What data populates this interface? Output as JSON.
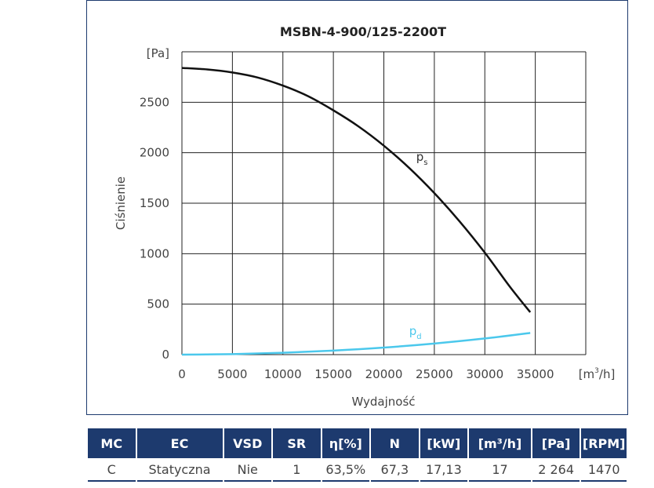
{
  "chart_data": {
    "type": "line",
    "title": "MSBN-4-900/125-2200T",
    "xlabel": "Wydajność",
    "ylabel": "Ciśnienie",
    "x_unit": "[m³/h]",
    "y_unit": "[Pa]",
    "xlim": [
      0,
      40000
    ],
    "ylim": [
      0,
      3000
    ],
    "x_ticks": [
      "0",
      "5000",
      "10000",
      "15000",
      "20000",
      "25000",
      "30000",
      "35000"
    ],
    "y_ticks": [
      "0",
      "500",
      "1000",
      "1500",
      "2000",
      "2500"
    ],
    "grid": true,
    "series": [
      {
        "name": "ps",
        "label_main": "p",
        "label_sub": "s",
        "color": "#111111",
        "x": [
          0,
          2500,
          5000,
          7500,
          10000,
          12500,
          15000,
          17500,
          20000,
          22500,
          25000,
          27500,
          30000,
          32500,
          34500
        ],
        "y": [
          2840,
          2825,
          2795,
          2745,
          2665,
          2560,
          2420,
          2260,
          2070,
          1850,
          1600,
          1320,
          1010,
          670,
          420
        ]
      },
      {
        "name": "pd",
        "label_main": "p",
        "label_sub": "d",
        "color": "#4bc8ec",
        "x": [
          0,
          5000,
          10000,
          15000,
          20000,
          25000,
          30000,
          34500
        ],
        "y": [
          0,
          5,
          18,
          40,
          70,
          110,
          160,
          215
        ]
      }
    ]
  },
  "table": {
    "headers": [
      "MC",
      "EC",
      "VSD",
      "SR",
      "η[%]",
      "N",
      "[kW]",
      "[m³/h]",
      "[Pa]",
      "[RPM]"
    ],
    "row": [
      "C",
      "Statyczna",
      "Nie",
      "1",
      "63,5%",
      "67,3",
      "17,13",
      "17",
      "2 264",
      "1470"
    ]
  }
}
